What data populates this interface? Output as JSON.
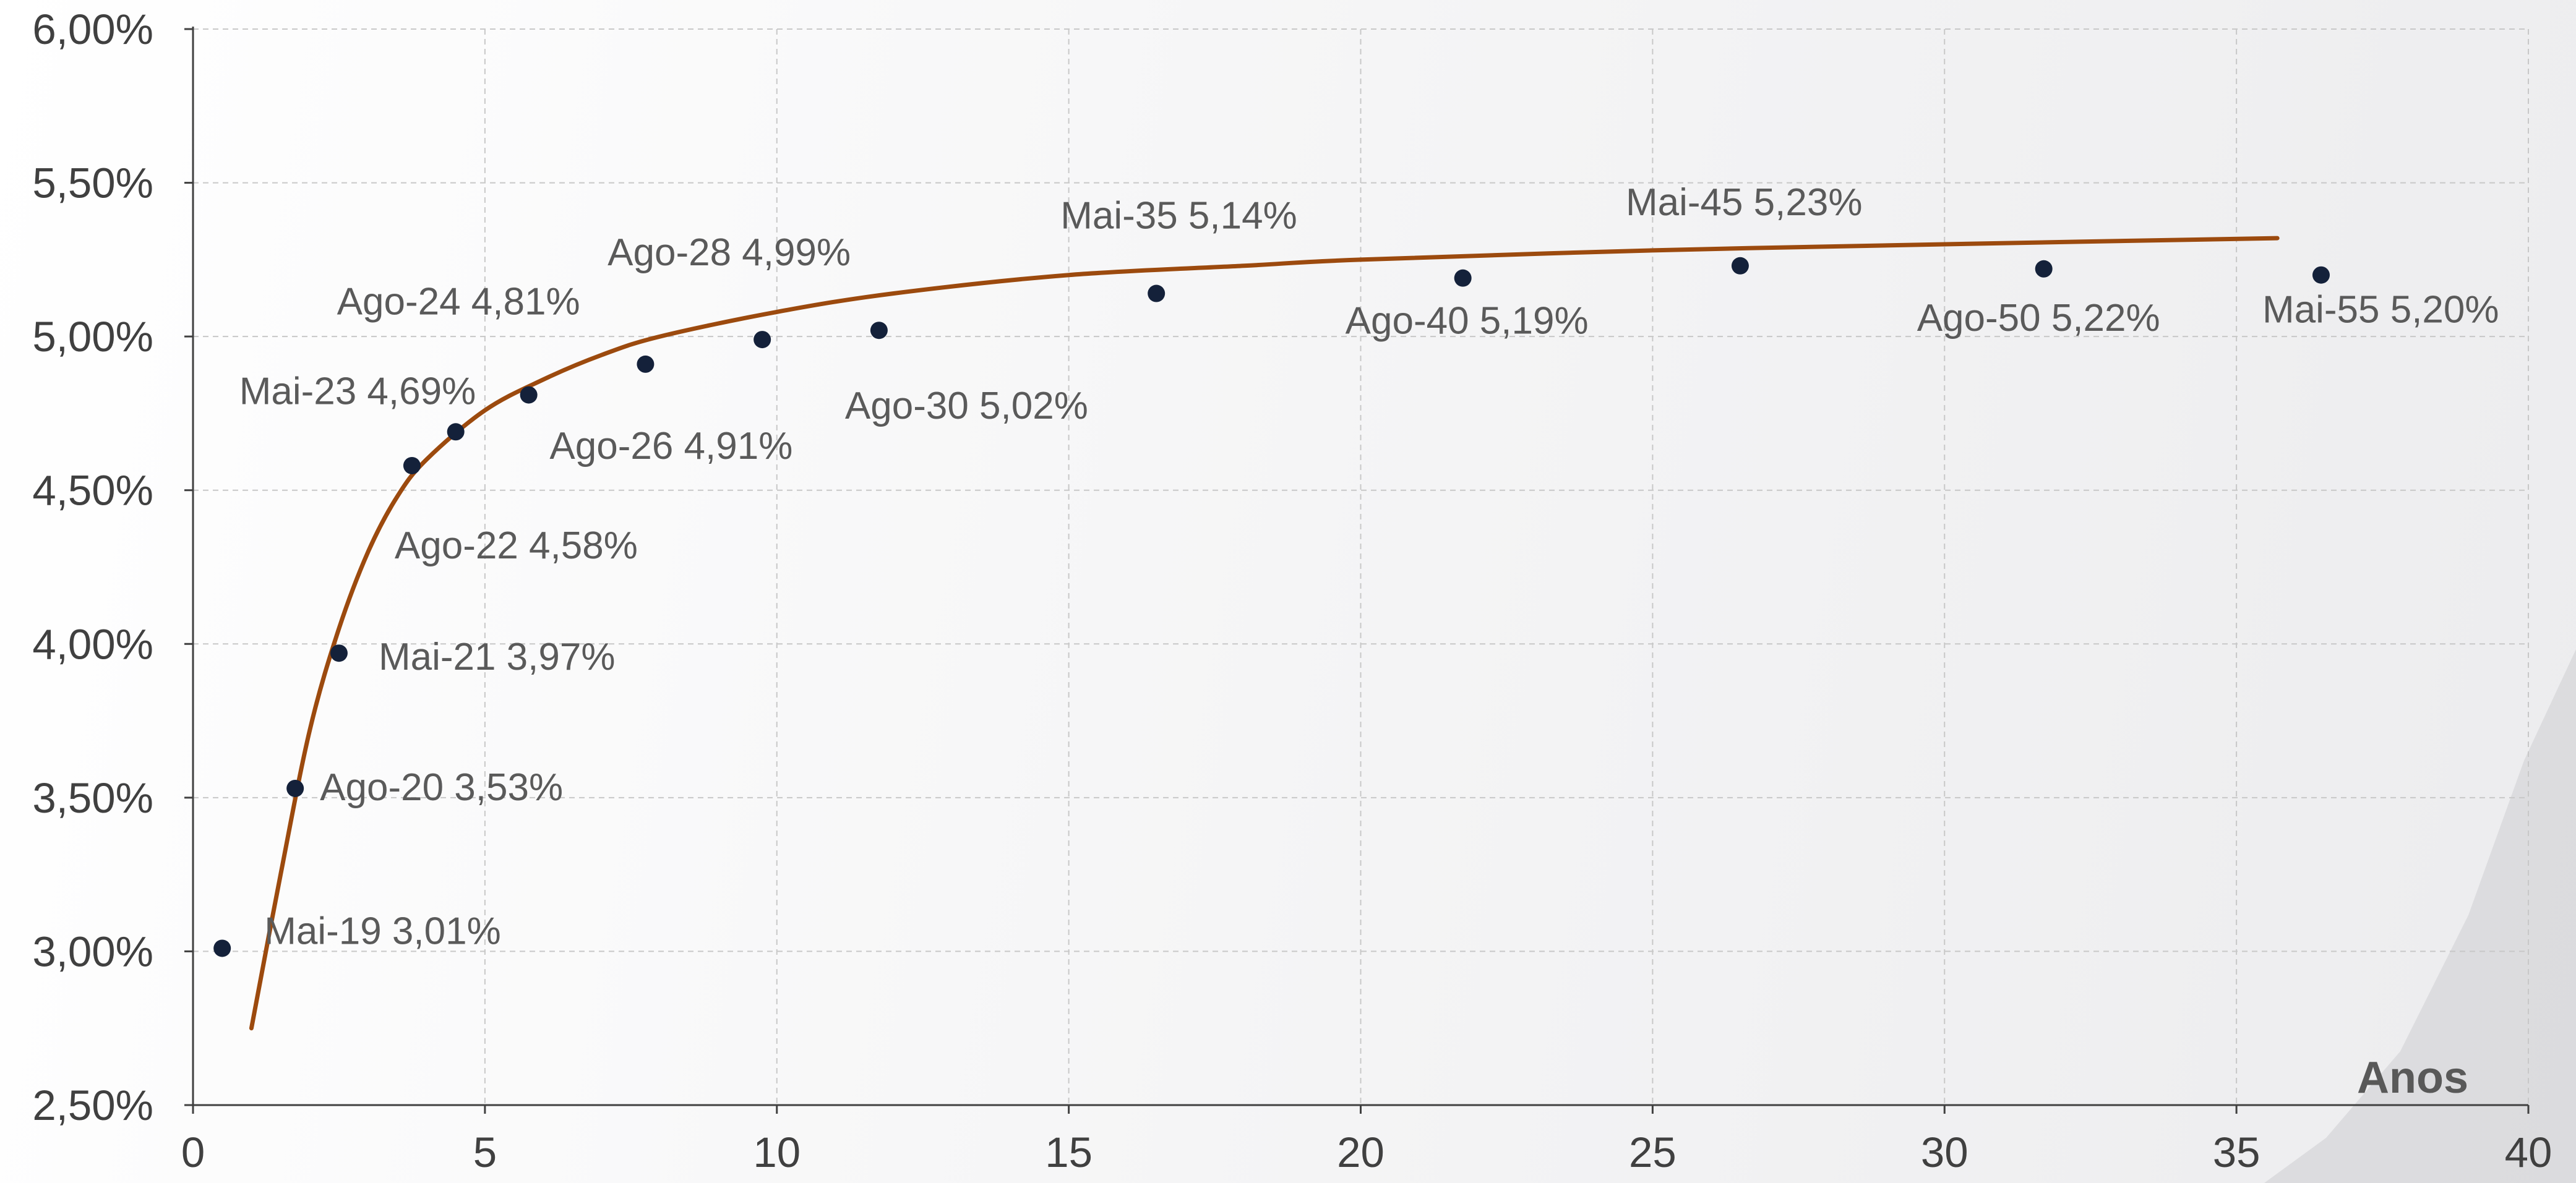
{
  "chart_data": {
    "type": "scatter",
    "xlabel": "Anos",
    "ylabel": "",
    "xlim": [
      0,
      40
    ],
    "ylim": [
      2.5,
      6.0
    ],
    "x_ticks": [
      "0",
      "5",
      "10",
      "15",
      "20",
      "25",
      "30",
      "35",
      "40"
    ],
    "y_ticks": [
      "2,50%",
      "3,00%",
      "3,50%",
      "4,00%",
      "4,50%",
      "5,00%",
      "5,50%",
      "6,00%"
    ],
    "grid": true,
    "colors": {
      "points": "#14213a",
      "curve": "#9c4a0e",
      "grid": "#c8c8c8",
      "axis": "#404040"
    },
    "points": [
      {
        "label": "Mai-19 3,01%",
        "x": 0.5,
        "y": 3.01
      },
      {
        "label": "Ago-20 3,53%",
        "x": 1.75,
        "y": 3.53
      },
      {
        "label": "Mai-21 3,97%",
        "x": 2.5,
        "y": 3.97
      },
      {
        "label": "Ago-22 4,58%",
        "x": 3.75,
        "y": 4.58
      },
      {
        "label": "Mai-23 4,69%",
        "x": 4.5,
        "y": 4.69
      },
      {
        "label": "Ago-24 4,81%",
        "x": 5.75,
        "y": 4.81
      },
      {
        "label": "Ago-26 4,91%",
        "x": 7.75,
        "y": 4.91
      },
      {
        "label": "Ago-28 4,99%",
        "x": 9.75,
        "y": 4.99
      },
      {
        "label": "Ago-30 5,02%",
        "x": 11.75,
        "y": 5.02
      },
      {
        "label": "Mai-35 5,14%",
        "x": 16.5,
        "y": 5.14
      },
      {
        "label": "Ago-40 5,19%",
        "x": 21.75,
        "y": 5.19
      },
      {
        "label": "Mai-45 5,23%",
        "x": 26.5,
        "y": 5.23
      },
      {
        "label": "Ago-50 5,22%",
        "x": 31.7,
        "y": 5.22
      },
      {
        "label": "Mai-55 5,20%",
        "x": 36.45,
        "y": 5.2
      }
    ],
    "fit_curve": [
      {
        "x": 1.0,
        "y": 2.75
      },
      {
        "x": 1.5,
        "y": 3.25
      },
      {
        "x": 2.0,
        "y": 3.72
      },
      {
        "x": 2.5,
        "y": 4.05
      },
      {
        "x": 3.0,
        "y": 4.3
      },
      {
        "x": 3.5,
        "y": 4.48
      },
      {
        "x": 4.0,
        "y": 4.6
      },
      {
        "x": 5.0,
        "y": 4.76
      },
      {
        "x": 6.0,
        "y": 4.86
      },
      {
        "x": 7.0,
        "y": 4.94
      },
      {
        "x": 8.0,
        "y": 5.0
      },
      {
        "x": 10.0,
        "y": 5.08
      },
      {
        "x": 12.0,
        "y": 5.14
      },
      {
        "x": 15.0,
        "y": 5.2
      },
      {
        "x": 18.0,
        "y": 5.23
      },
      {
        "x": 20.0,
        "y": 5.25
      },
      {
        "x": 25.0,
        "y": 5.28
      },
      {
        "x": 30.0,
        "y": 5.3
      },
      {
        "x": 35.7,
        "y": 5.32
      }
    ]
  }
}
